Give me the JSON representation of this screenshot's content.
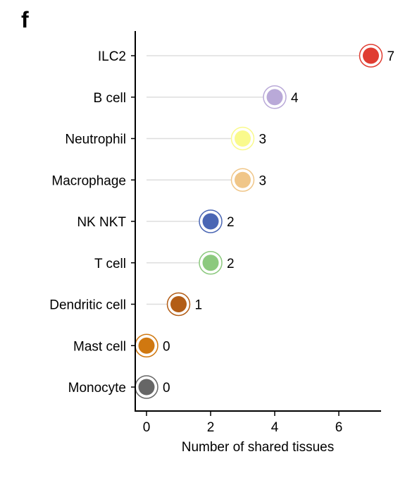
{
  "panel_label": "f",
  "chart_data": {
    "type": "lollipop",
    "xlabel": "Number of shared tissues",
    "ylabel": "",
    "xlim": [
      -0.3,
      7.3
    ],
    "xticks": [
      0,
      2,
      4,
      6
    ],
    "grid": false,
    "legend": "none",
    "categories": [
      "ILC2",
      "B cell",
      "Neutrophil",
      "Macrophage",
      "NK NKT",
      "T cell",
      "Dendritic cell",
      "Mast cell",
      "Monocyte"
    ],
    "values": [
      7,
      4,
      3,
      3,
      2,
      2,
      1,
      0,
      0
    ],
    "colors": [
      "#e03c31",
      "#b9a9d8",
      "#fafa8c",
      "#f0c688",
      "#4a66b4",
      "#8cc97e",
      "#b35d16",
      "#d07810",
      "#666666"
    ]
  }
}
